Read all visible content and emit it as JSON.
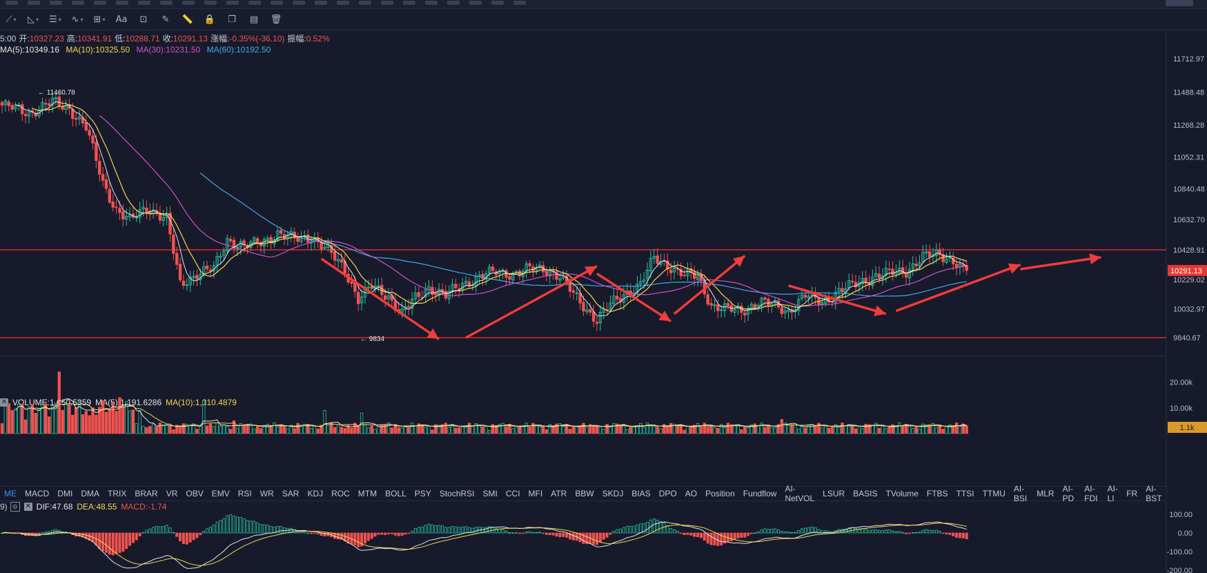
{
  "toolbar": {
    "icons": [
      "lines-icon",
      "trend-icon",
      "wave-icon",
      "grid-icon",
      "text-icon",
      "measure-icon",
      "brush-icon",
      "ruler-icon",
      "lock-icon",
      "copy-icon",
      "layers-icon",
      "trash-icon"
    ],
    "text_tool": "Aa"
  },
  "ohlc": {
    "time": "5:00",
    "open_label": "开:",
    "open": "10327.23",
    "high_label": "高:",
    "high": "10341.91",
    "low_label": "低:",
    "low": "10288.71",
    "close_label": "收:",
    "close": "10291.13",
    "change_label": "涨幅:",
    "change": "-0.35%(-36.10)",
    "amp_label": "振幅:",
    "amp": "0.52%"
  },
  "main_ma": {
    "ma5": "MA(5):10349.16",
    "ma10": "MA(10):10325.50",
    "ma30": "MA(30):10231.50",
    "ma60": "MA(60):10192.50"
  },
  "volume_legend": {
    "vol": "VOLUME:1,050.5359",
    "ma5": "MA(5):1,191.6286",
    "ma10": "MA(10):1,310.4879"
  },
  "macd_legend": {
    "prefix": "9)",
    "dif": "DIF:47.68",
    "dea": "DEA:48.55",
    "macd": "MACD:-1.74"
  },
  "tabs": [
    "ME",
    "MACD",
    "DMI",
    "DMA",
    "TRIX",
    "BRAR",
    "VR",
    "OBV",
    "EMV",
    "RSI",
    "WR",
    "SAR",
    "KDJ",
    "ROC",
    "MTM",
    "BOLL",
    "PSY",
    "StochRSI",
    "SMI",
    "CCI",
    "MFI",
    "ATR",
    "BBW",
    "SKDJ",
    "BIAS",
    "DPO",
    "AO",
    "Position",
    "Fundflow",
    "AI-NetVOL",
    "LSUR",
    "BASIS",
    "TVolume",
    "FTBS",
    "TTSI",
    "TTMU",
    "AI-BSI",
    "MLR",
    "AI-PD",
    "AI-FDI",
    "AI-LI",
    "FR",
    "AI-BST"
  ],
  "active_tab": "ME",
  "colors": {
    "up": "#26c6a0",
    "down": "#ef5350",
    "ma5": "#e6e6e6",
    "ma10": "#f2d94e",
    "ma30": "#d152c9",
    "ma60": "#3fa9e8",
    "level_line": "#e12b2b",
    "arrow": "#f23b3b",
    "price_tag": "#e53935",
    "vol_tag": "#d99a2b"
  },
  "chart_data": {
    "type": "candlestick",
    "price_axis_labels": [
      "11712.97",
      "11488.48",
      "11268.28",
      "11052.31",
      "10840.48",
      "10632.70",
      "10428.91",
      "10229.02",
      "10032.97",
      "9840.67"
    ],
    "price_ylim": [
      9750,
      11900
    ],
    "current_price": "10291.13",
    "high_marker": "11460.78",
    "low_marker": "9834",
    "resistance_level": 10430,
    "support_level": 9840,
    "volume_axis_labels": [
      "20.00k",
      "10.00k"
    ],
    "volume_current": "1.1k",
    "macd_axis_labels": [
      "100.00",
      "0.00",
      "-100.00",
      "-200.00"
    ],
    "close_anchors": [
      [
        0,
        11400
      ],
      [
        8,
        11350
      ],
      [
        15,
        11420
      ],
      [
        20,
        11380
      ],
      [
        25,
        11250
      ],
      [
        30,
        10880
      ],
      [
        34,
        10700
      ],
      [
        38,
        10620
      ],
      [
        43,
        10720
      ],
      [
        49,
        10630
      ],
      [
        53,
        10200
      ],
      [
        58,
        10270
      ],
      [
        63,
        10300
      ],
      [
        67,
        10500
      ],
      [
        72,
        10450
      ],
      [
        77,
        10480
      ],
      [
        82,
        10540
      ],
      [
        87,
        10500
      ],
      [
        92,
        10520
      ],
      [
        97,
        10420
      ],
      [
        102,
        10300
      ],
      [
        106,
        10100
      ],
      [
        110,
        10180
      ],
      [
        115,
        10120
      ],
      [
        119,
        10000
      ],
      [
        122,
        10080
      ],
      [
        127,
        10180
      ],
      [
        132,
        10120
      ],
      [
        137,
        10200
      ],
      [
        142,
        10250
      ],
      [
        147,
        10280
      ],
      [
        152,
        10270
      ],
      [
        157,
        10300
      ],
      [
        162,
        10300
      ],
      [
        166,
        10250
      ],
      [
        170,
        10130
      ],
      [
        174,
        10030
      ],
      [
        177,
        9960
      ],
      [
        181,
        10060
      ],
      [
        185,
        10130
      ],
      [
        190,
        10200
      ],
      [
        194,
        10370
      ],
      [
        198,
        10330
      ],
      [
        203,
        10260
      ],
      [
        207,
        10250
      ],
      [
        211,
        10060
      ],
      [
        215,
        10030
      ],
      [
        220,
        10020
      ],
      [
        225,
        10080
      ],
      [
        229,
        10060
      ],
      [
        234,
        10020
      ],
      [
        239,
        10120
      ],
      [
        244,
        10080
      ],
      [
        249,
        10150
      ],
      [
        254,
        10200
      ],
      [
        259,
        10250
      ],
      [
        264,
        10270
      ],
      [
        269,
        10290
      ],
      [
        274,
        10380
      ],
      [
        279,
        10400
      ],
      [
        283,
        10360
      ],
      [
        286,
        10291
      ]
    ],
    "arrows": [
      [
        95,
        10370,
        130,
        9830
      ],
      [
        138,
        9840,
        177,
        10320
      ],
      [
        177,
        10270,
        199,
        9950
      ],
      [
        200,
        10000,
        221,
        10390
      ],
      [
        234,
        10190,
        263,
        10000
      ],
      [
        266,
        10020,
        303,
        10330
      ],
      [
        303,
        10300,
        327,
        10380
      ]
    ]
  }
}
